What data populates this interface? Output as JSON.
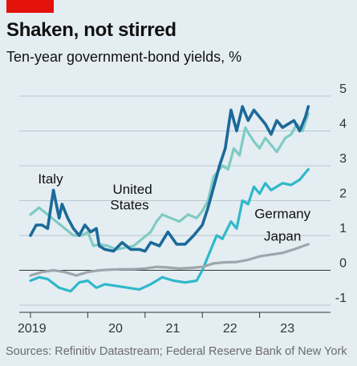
{
  "header": {
    "title": "Shaken, not stirred",
    "subtitle": "Ten-year government-bond yields, %"
  },
  "footer": {
    "source": "Sources: Refinitiv Datastream; Federal Reserve Bank of New York"
  },
  "colors": {
    "background": "#e4edf2",
    "accent_red": "#e3120b",
    "italy": "#1a6a99",
    "united_states": "#7fcbc4",
    "germany": "#2fb8c9",
    "japan": "#9da6ad"
  },
  "chart_data": {
    "type": "line",
    "title": "Shaken, not stirred",
    "subtitle": "Ten-year government-bond yields, %",
    "xlabel": "",
    "ylabel": "",
    "ylim": [
      -1,
      5
    ],
    "xlim": [
      2019.0,
      2024.0
    ],
    "y_ticks": [
      5,
      4,
      3,
      2,
      1,
      0,
      -1
    ],
    "x_tick_labels": [
      "2019",
      "20",
      "21",
      "22",
      "23"
    ],
    "x_tick_values": [
      2019.5,
      2020.5,
      2021.5,
      2022.5,
      2023.5
    ],
    "grid": true,
    "y_axis_side": "right",
    "series": [
      {
        "name": "United States",
        "x": [
          2019.0,
          2019.15,
          2019.3,
          2019.45,
          2019.6,
          2019.75,
          2019.9,
          2020.0,
          2020.1,
          2020.2,
          2020.35,
          2020.5,
          2020.65,
          2020.8,
          2020.95,
          2021.1,
          2021.2,
          2021.3,
          2021.45,
          2021.6,
          2021.75,
          2021.9,
          2022.0,
          2022.1,
          2022.2,
          2022.35,
          2022.45,
          2022.55,
          2022.65,
          2022.75,
          2022.82,
          2022.9,
          2023.0,
          2023.1,
          2023.2,
          2023.3,
          2023.45,
          2023.55,
          2023.65,
          2023.75,
          2023.85
        ],
        "values": [
          1.6,
          1.8,
          1.6,
          1.4,
          1.2,
          1.0,
          1.0,
          1.1,
          0.7,
          0.75,
          0.7,
          0.6,
          0.65,
          0.7,
          0.9,
          1.1,
          1.4,
          1.6,
          1.5,
          1.4,
          1.6,
          1.5,
          1.7,
          2.0,
          2.7,
          3.0,
          2.9,
          3.5,
          3.3,
          4.1,
          3.9,
          3.7,
          3.5,
          3.8,
          3.6,
          3.4,
          3.8,
          3.9,
          4.2,
          4.0,
          4.5
        ]
      },
      {
        "name": "Italy",
        "x": [
          2019.0,
          2019.1,
          2019.2,
          2019.3,
          2019.4,
          2019.5,
          2019.55,
          2019.6,
          2019.65,
          2019.75,
          2019.85,
          2019.95,
          2020.05,
          2020.15,
          2020.2,
          2020.3,
          2020.45,
          2020.6,
          2020.75,
          2020.9,
          2021.0,
          2021.1,
          2021.25,
          2021.4,
          2021.55,
          2021.7,
          2021.85,
          2022.0,
          2022.1,
          2022.2,
          2022.3,
          2022.4,
          2022.5,
          2022.6,
          2022.7,
          2022.8,
          2022.9,
          2023.0,
          2023.1,
          2023.2,
          2023.3,
          2023.4,
          2023.5,
          2023.6,
          2023.7,
          2023.8,
          2023.85
        ],
        "values": [
          1.0,
          1.3,
          1.3,
          1.2,
          2.3,
          1.5,
          1.9,
          1.7,
          1.5,
          1.2,
          1.0,
          1.3,
          1.1,
          1.2,
          0.7,
          0.6,
          0.55,
          0.8,
          0.6,
          0.6,
          0.55,
          0.8,
          0.7,
          1.1,
          0.75,
          0.75,
          1.0,
          1.3,
          1.8,
          2.4,
          3.0,
          3.5,
          4.6,
          4.0,
          4.7,
          4.3,
          4.6,
          4.4,
          4.2,
          3.9,
          4.3,
          4.1,
          4.2,
          4.3,
          4.0,
          4.4,
          4.7
        ]
      },
      {
        "name": "Germany",
        "x": [
          2019.0,
          2019.15,
          2019.3,
          2019.5,
          2019.7,
          2019.85,
          2020.0,
          2020.15,
          2020.3,
          2020.5,
          2020.7,
          2020.9,
          2021.1,
          2021.3,
          2021.5,
          2021.7,
          2021.9,
          2022.0,
          2022.15,
          2022.25,
          2022.35,
          2022.5,
          2022.6,
          2022.7,
          2022.8,
          2022.9,
          2023.0,
          2023.1,
          2023.2,
          2023.3,
          2023.4,
          2023.55,
          2023.7,
          2023.85
        ],
        "values": [
          -0.3,
          -0.2,
          -0.25,
          -0.5,
          -0.6,
          -0.35,
          -0.3,
          -0.5,
          -0.4,
          -0.45,
          -0.5,
          -0.55,
          -0.4,
          -0.2,
          -0.3,
          -0.35,
          -0.3,
          0.0,
          0.6,
          1.0,
          0.9,
          1.4,
          1.2,
          2.0,
          1.9,
          2.4,
          2.2,
          2.5,
          2.3,
          2.4,
          2.5,
          2.45,
          2.6,
          2.9
        ]
      },
      {
        "name": "Japan",
        "x": [
          2019.0,
          2019.2,
          2019.4,
          2019.6,
          2019.8,
          2020.0,
          2020.2,
          2020.4,
          2020.6,
          2020.8,
          2021.0,
          2021.2,
          2021.4,
          2021.6,
          2021.8,
          2022.0,
          2022.2,
          2022.4,
          2022.6,
          2022.8,
          2023.0,
          2023.2,
          2023.4,
          2023.6,
          2023.85
        ],
        "values": [
          -0.15,
          -0.05,
          0.0,
          -0.05,
          -0.15,
          -0.05,
          0.0,
          0.02,
          0.03,
          0.03,
          0.05,
          0.1,
          0.08,
          0.05,
          0.07,
          0.1,
          0.2,
          0.23,
          0.24,
          0.3,
          0.4,
          0.45,
          0.5,
          0.6,
          0.75
        ]
      }
    ],
    "series_labels": [
      {
        "name": "Italy",
        "at_x": 2019.35,
        "at_y": 2.5
      },
      {
        "name": "United",
        "at_x": 2020.78,
        "at_y": 2.2
      },
      {
        "name": "States",
        "at_x": 2020.73,
        "at_y": 1.75
      },
      {
        "name": "Germany",
        "at_x": 2023.4,
        "at_y": 1.5
      },
      {
        "name": "Japan",
        "at_x": 2023.4,
        "at_y": 0.85
      }
    ]
  }
}
